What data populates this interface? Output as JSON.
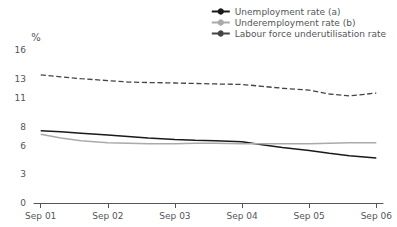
{
  "chart_data": {
    "type": "line",
    "ylabel": "%",
    "xlim": [
      -0.1,
      5.1
    ],
    "xticks": [
      {
        "value": 0,
        "label": "Sep 01"
      },
      {
        "value": 1,
        "label": "Sep 02"
      },
      {
        "value": 2,
        "label": "Sep 03"
      },
      {
        "value": 3,
        "label": "Sep 04"
      },
      {
        "value": 4,
        "label": "Sep 05"
      },
      {
        "value": 5,
        "label": "Sep 06"
      }
    ],
    "ylim": [
      0,
      16
    ],
    "yticks": [
      0,
      3,
      6,
      8,
      11,
      13,
      16
    ],
    "grid": false,
    "legend": "upper right",
    "series": [
      {
        "name": "Unemployment rate (a)",
        "color": "#1a1a1a",
        "line_style": "solid",
        "x": [
          0,
          0.3,
          0.6,
          1.0,
          1.3,
          1.6,
          2.0,
          2.3,
          2.6,
          3.0,
          3.3,
          3.6,
          4.0,
          4.3,
          4.6,
          5.0
        ],
        "values": [
          7.55,
          7.45,
          7.3,
          7.1,
          6.95,
          6.8,
          6.65,
          6.55,
          6.5,
          6.4,
          6.1,
          5.8,
          5.5,
          5.2,
          4.95,
          4.7
        ]
      },
      {
        "name": "Underemployment rate (b)",
        "color": "#aaaaaa",
        "line_style": "solid",
        "x": [
          0,
          0.3,
          0.6,
          1.0,
          1.3,
          1.6,
          2.0,
          2.3,
          2.6,
          3.0,
          3.3,
          3.6,
          4.0,
          4.3,
          4.6,
          5.0
        ],
        "values": [
          7.2,
          6.8,
          6.5,
          6.3,
          6.25,
          6.2,
          6.2,
          6.25,
          6.25,
          6.2,
          6.2,
          6.2,
          6.2,
          6.25,
          6.3,
          6.3
        ]
      },
      {
        "name": "Labour force underutilisation rate",
        "color": "#444444",
        "line_style": "dashed",
        "x": [
          0,
          0.3,
          0.6,
          1.0,
          1.3,
          1.6,
          2.0,
          2.3,
          2.6,
          3.0,
          3.3,
          3.6,
          4.0,
          4.3,
          4.6,
          5.0
        ],
        "values": [
          13.4,
          13.2,
          13.0,
          12.8,
          12.65,
          12.6,
          12.55,
          12.5,
          12.45,
          12.4,
          12.2,
          12.0,
          11.8,
          11.4,
          11.2,
          11.5
        ]
      }
    ]
  }
}
